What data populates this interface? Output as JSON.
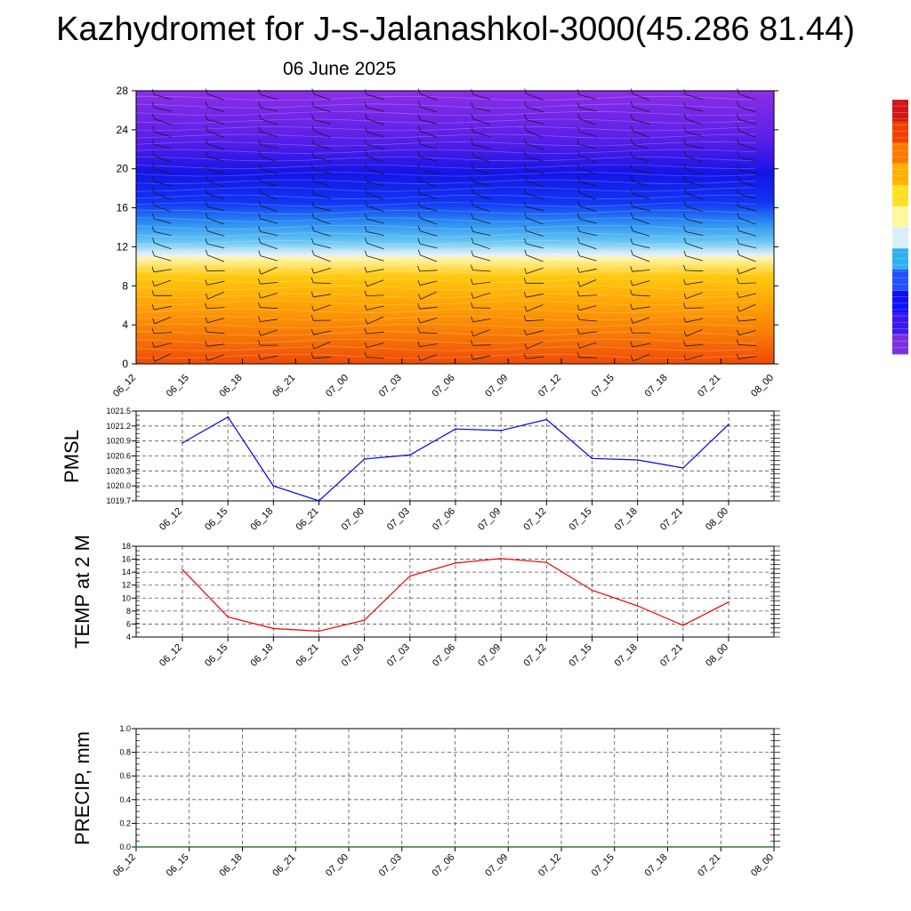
{
  "title": "Kazhydromet for J-s-Jalanashkol-3000(45.286 81.44)",
  "subtitle": "06 June 2025",
  "colors": {
    "pmsl_line": "#0000ee",
    "temp_line": "#ee0000",
    "precip_line": "#006400",
    "grid": "#555555",
    "colorbar": [
      "#7b2fe0",
      "#3a1af0",
      "#1010f8",
      "#2050ff",
      "#30b0f0",
      "#d8eef8",
      "#fff7a0",
      "#ffe020",
      "#ffb000",
      "#ff7a00",
      "#f04000",
      "#d01818"
    ]
  },
  "chart_data": [
    {
      "type": "heatmap",
      "name": "cross-section",
      "x_tick_labels": [
        "06_12",
        "06_15",
        "06_18",
        "06_21",
        "07_00",
        "07_03",
        "07_06",
        "07_09",
        "07_12",
        "07_15",
        "07_18",
        "07_21",
        "08_00"
      ],
      "y_ticks": [
        0,
        4,
        8,
        12,
        16,
        20,
        24,
        28
      ],
      "ylim": [
        0,
        28
      ],
      "color_levels_by_height": [
        {
          "height": 0,
          "color": "#ef4a08"
        },
        {
          "height": 3,
          "color": "#f77a05"
        },
        {
          "height": 6,
          "color": "#ffa206"
        },
        {
          "height": 9,
          "color": "#ffc90e"
        },
        {
          "height": 10.8,
          "color": "#fff4a8"
        },
        {
          "height": 11.2,
          "color": "#e3f0fa"
        },
        {
          "height": 12.5,
          "color": "#69c8f2"
        },
        {
          "height": 14.5,
          "color": "#2a8cf2"
        },
        {
          "height": 16.5,
          "color": "#1036f4"
        },
        {
          "height": 19.5,
          "color": "#1414e6"
        },
        {
          "height": 23,
          "color": "#5a1ee8"
        },
        {
          "height": 28,
          "color": "#8c2ee8"
        }
      ],
      "wind_barbs": "yes"
    },
    {
      "type": "line",
      "ylabel": "PMSL",
      "x_tick_labels": [
        "06_12",
        "06_15",
        "06_18",
        "06_21",
        "07_00",
        "07_03",
        "07_06",
        "07_09",
        "07_12",
        "07_15",
        "07_18",
        "07_21",
        "08_00"
      ],
      "y_tick_labels": [
        "1019.7",
        "1020.0",
        "1020.3",
        "1020.6",
        "1020.9",
        "1021.2",
        "1021.5"
      ],
      "ylim": [
        1019.7,
        1021.5
      ],
      "grid": true,
      "values": [
        1020.86,
        1021.38,
        1020.0,
        1019.7,
        1020.54,
        1020.62,
        1021.14,
        1021.11,
        1021.33,
        1020.55,
        1020.52,
        1020.36,
        1021.23
      ]
    },
    {
      "type": "line",
      "ylabel": "TEMP at 2 M",
      "x_tick_labels": [
        "06_12",
        "06_15",
        "06_18",
        "06_21",
        "07_00",
        "07_03",
        "07_06",
        "07_09",
        "07_12",
        "07_15",
        "07_18",
        "07_21",
        "08_00"
      ],
      "y_tick_labels": [
        "4",
        "6",
        "8",
        "10",
        "12",
        "14",
        "16",
        "18"
      ],
      "ylim": [
        4,
        18
      ],
      "grid": true,
      "values": [
        14.4,
        7.1,
        5.3,
        4.9,
        6.6,
        13.4,
        15.4,
        16.1,
        15.5,
        11.2,
        8.8,
        5.8,
        9.4
      ]
    },
    {
      "type": "line",
      "ylabel": "PRECIP, mm",
      "x_tick_labels": [
        "06_12",
        "06_15",
        "06_18",
        "06_21",
        "07_00",
        "07_03",
        "07_06",
        "07_09",
        "07_12",
        "07_15",
        "07_18",
        "07_21",
        "08_00"
      ],
      "y_tick_labels": [
        "0.0",
        "0.2",
        "0.4",
        "0.6",
        "0.8",
        "1.0"
      ],
      "ylim": [
        0,
        1
      ],
      "grid": true,
      "values": [
        0,
        0,
        0,
        0,
        0,
        0,
        0,
        0,
        0,
        0,
        0,
        0,
        0
      ]
    }
  ]
}
